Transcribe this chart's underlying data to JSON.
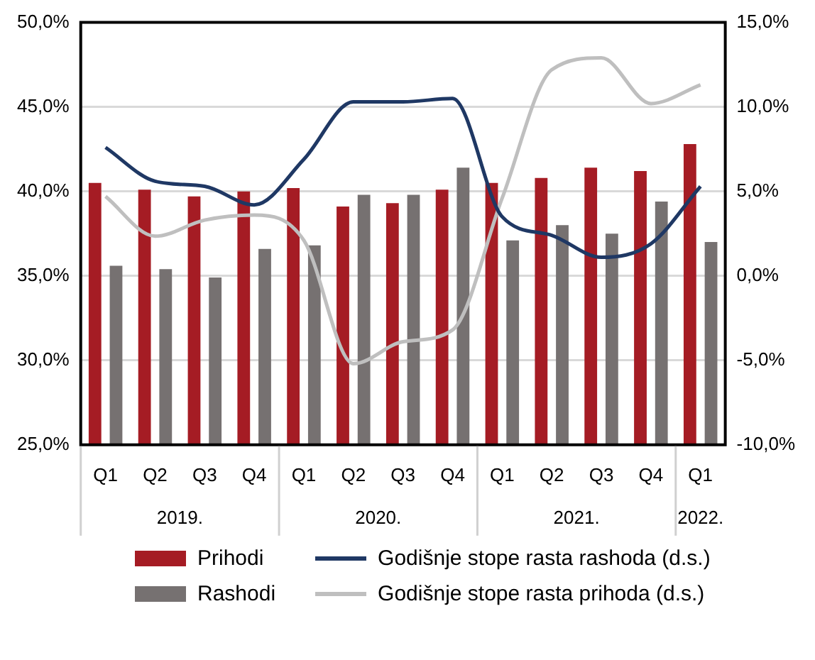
{
  "chart_data": {
    "type": "bar",
    "categories": [
      "Q1",
      "Q2",
      "Q3",
      "Q4",
      "Q1",
      "Q2",
      "Q3",
      "Q4",
      "Q1",
      "Q2",
      "Q3",
      "Q4",
      "Q1"
    ],
    "annotations": [
      "2019.",
      "2020.",
      "2021.",
      "2022."
    ],
    "series": [
      {
        "name": "Prihodi",
        "color": "#a51c24",
        "values": [
          40.5,
          40.1,
          39.7,
          40.0,
          40.2,
          39.1,
          39.3,
          40.1,
          40.5,
          40.8,
          41.4,
          41.2,
          42.8
        ]
      },
      {
        "name": "Rashodi",
        "color": "#767171",
        "values": [
          35.6,
          35.4,
          34.9,
          36.6,
          36.8,
          39.8,
          39.8,
          41.4,
          37.1,
          38.0,
          37.5,
          39.4,
          37.0
        ]
      },
      {
        "name": "Godišnje stope rasta rashoda (d.s.)",
        "type": "line",
        "axis": "y2",
        "color": "#1f3864",
        "values": [
          7.6,
          5.6,
          5.3,
          4.2,
          6.9,
          10.3,
          10.3,
          10.5,
          3.5,
          2.4,
          1.1,
          1.9,
          5.3
        ]
      },
      {
        "name": "Godišnje stope rasta prihoda (d.s.)",
        "type": "line",
        "axis": "y2",
        "color": "#bfbfbf",
        "values": [
          4.7,
          2.35,
          3.3,
          3.6,
          2.1,
          -5.2,
          -3.9,
          -3.2,
          4.6,
          12.2,
          12.9,
          10.2,
          11.3
        ]
      }
    ],
    "ylim": [
      25,
      50
    ],
    "yticks": [
      {
        "value": 25,
        "label": "25,0%"
      },
      {
        "value": 30,
        "label": "30,0%"
      },
      {
        "value": 35,
        "label": "35,0%"
      },
      {
        "value": 40,
        "label": "40,0%"
      },
      {
        "value": 45,
        "label": "45,0%"
      },
      {
        "value": 50,
        "label": "50,0%"
      }
    ],
    "y2lim": [
      -10,
      15
    ],
    "y2ticks": [
      {
        "value": -10,
        "label": "-10,0%"
      },
      {
        "value": -5,
        "label": "-5,0%"
      },
      {
        "value": 0,
        "label": "0,0%"
      },
      {
        "value": 5,
        "label": "5,0%"
      },
      {
        "value": 10,
        "label": "10,0%"
      },
      {
        "value": 15,
        "label": "15,0%"
      }
    ],
    "grid": "y",
    "legend": "bottom",
    "marker": "none",
    "line_style": "solid"
  }
}
